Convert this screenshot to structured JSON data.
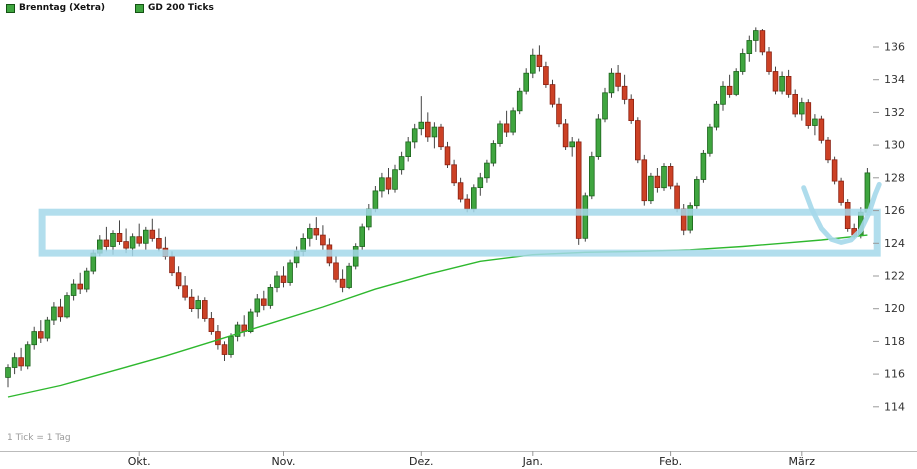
{
  "legend": {
    "items": [
      {
        "label": "Brenntag (Xetra)",
        "color": "#3fa53f"
      },
      {
        "label": "GD 200 Ticks",
        "color": "#3fa53f"
      }
    ]
  },
  "footer_note": "1 Tick = 1 Tag",
  "chart_data": {
    "type": "candlestick",
    "title": "Brenntag (Xetra)",
    "legend_position": "top-left",
    "grid": false,
    "ylim": [
      114,
      137.2
    ],
    "y_axis": {
      "side": "right",
      "ticks": [
        136,
        134,
        132,
        130,
        128,
        126,
        124,
        122,
        120,
        118,
        116,
        114
      ]
    },
    "x_axis": {
      "tick_labels": [
        "Okt.",
        "Nov.",
        "Dez.",
        "Jan.",
        "Feb.",
        "März"
      ],
      "tick_days": [
        20,
        42,
        63,
        80,
        101,
        121
      ],
      "note": "1 Tick = 1 Tag"
    },
    "candles_ohlc": [
      [
        115.8,
        116.6,
        115.2,
        116.4
      ],
      [
        116.4,
        117.3,
        116.0,
        117.0
      ],
      [
        117.0,
        117.6,
        116.2,
        116.5
      ],
      [
        116.5,
        118.0,
        116.3,
        117.8
      ],
      [
        117.8,
        118.9,
        117.5,
        118.6
      ],
      [
        118.6,
        119.3,
        117.9,
        118.2
      ],
      [
        118.2,
        119.5,
        118.0,
        119.3
      ],
      [
        119.3,
        120.4,
        119.0,
        120.1
      ],
      [
        120.1,
        120.6,
        119.2,
        119.5
      ],
      [
        119.5,
        121.0,
        119.4,
        120.8
      ],
      [
        120.8,
        121.8,
        120.5,
        121.5
      ],
      [
        121.5,
        122.2,
        120.9,
        121.2
      ],
      [
        121.2,
        122.5,
        121.0,
        122.3
      ],
      [
        122.3,
        123.6,
        122.1,
        123.4
      ],
      [
        123.4,
        124.5,
        123.2,
        124.2
      ],
      [
        124.2,
        125.0,
        123.5,
        123.8
      ],
      [
        123.8,
        124.8,
        123.3,
        124.6
      ],
      [
        124.6,
        125.4,
        123.9,
        124.1
      ],
      [
        124.1,
        124.9,
        123.4,
        123.7
      ],
      [
        123.7,
        124.6,
        123.2,
        124.4
      ],
      [
        124.4,
        125.2,
        123.8,
        124.0
      ],
      [
        124.0,
        125.0,
        123.6,
        124.8
      ],
      [
        124.8,
        125.5,
        124.1,
        124.3
      ],
      [
        124.3,
        124.9,
        123.5,
        123.7
      ],
      [
        123.7,
        124.4,
        123.0,
        123.2
      ],
      [
        123.2,
        123.5,
        122.0,
        122.2
      ],
      [
        122.2,
        122.6,
        121.2,
        121.4
      ],
      [
        121.4,
        122.0,
        120.5,
        120.7
      ],
      [
        120.7,
        121.2,
        119.8,
        120.0
      ],
      [
        120.0,
        120.8,
        119.4,
        120.5
      ],
      [
        120.5,
        120.7,
        119.2,
        119.4
      ],
      [
        119.4,
        119.8,
        118.4,
        118.6
      ],
      [
        118.6,
        119.0,
        117.5,
        117.8
      ],
      [
        117.8,
        118.0,
        116.8,
        117.2
      ],
      [
        117.2,
        118.5,
        117.0,
        118.3
      ],
      [
        118.3,
        119.2,
        118.0,
        119.0
      ],
      [
        119.0,
        119.6,
        118.3,
        118.6
      ],
      [
        118.6,
        120.0,
        118.5,
        119.8
      ],
      [
        119.8,
        120.9,
        119.5,
        120.6
      ],
      [
        120.6,
        121.1,
        119.9,
        120.2
      ],
      [
        120.2,
        121.5,
        120.0,
        121.3
      ],
      [
        121.3,
        122.3,
        121.0,
        122.0
      ],
      [
        122.0,
        122.6,
        121.3,
        121.6
      ],
      [
        121.6,
        123.0,
        121.4,
        122.8
      ],
      [
        122.8,
        123.8,
        122.5,
        123.5
      ],
      [
        123.5,
        124.6,
        123.2,
        124.3
      ],
      [
        124.3,
        125.2,
        123.8,
        124.9
      ],
      [
        124.9,
        125.6,
        124.2,
        124.5
      ],
      [
        124.5,
        125.1,
        123.6,
        123.9
      ],
      [
        123.9,
        124.3,
        122.6,
        122.8
      ],
      [
        122.8,
        123.2,
        121.6,
        121.8
      ],
      [
        121.8,
        122.4,
        121.0,
        121.3
      ],
      [
        121.3,
        122.8,
        121.2,
        122.6
      ],
      [
        122.6,
        124.0,
        122.4,
        123.8
      ],
      [
        123.8,
        125.2,
        123.6,
        125.0
      ],
      [
        125.0,
        126.4,
        124.8,
        126.1
      ],
      [
        126.1,
        127.5,
        125.9,
        127.2
      ],
      [
        127.2,
        128.3,
        126.8,
        128.0
      ],
      [
        128.0,
        128.6,
        127.0,
        127.3
      ],
      [
        127.3,
        128.8,
        127.1,
        128.5
      ],
      [
        128.5,
        129.6,
        128.2,
        129.3
      ],
      [
        129.3,
        130.5,
        129.0,
        130.2
      ],
      [
        130.2,
        131.3,
        129.8,
        131.0
      ],
      [
        131.0,
        133.0,
        130.6,
        131.4
      ],
      [
        131.4,
        132.0,
        130.2,
        130.5
      ],
      [
        130.5,
        131.4,
        129.8,
        131.1
      ],
      [
        131.1,
        131.3,
        129.7,
        129.9
      ],
      [
        129.9,
        130.2,
        128.6,
        128.8
      ],
      [
        128.8,
        129.1,
        127.5,
        127.7
      ],
      [
        127.7,
        128.0,
        126.5,
        126.7
      ],
      [
        126.7,
        127.0,
        125.9,
        126.1
      ],
      [
        126.1,
        127.6,
        125.9,
        127.4
      ],
      [
        127.4,
        128.3,
        126.9,
        128.0
      ],
      [
        128.0,
        129.1,
        127.7,
        128.9
      ],
      [
        128.9,
        130.3,
        128.7,
        130.1
      ],
      [
        130.1,
        131.5,
        129.9,
        131.3
      ],
      [
        131.3,
        132.1,
        130.5,
        130.8
      ],
      [
        130.8,
        132.3,
        130.6,
        132.1
      ],
      [
        132.1,
        133.5,
        131.9,
        133.3
      ],
      [
        133.3,
        134.7,
        133.1,
        134.4
      ],
      [
        134.4,
        135.9,
        134.1,
        135.5
      ],
      [
        135.5,
        136.1,
        134.5,
        134.8
      ],
      [
        134.8,
        135.1,
        133.5,
        133.7
      ],
      [
        133.7,
        134.0,
        132.3,
        132.5
      ],
      [
        132.5,
        132.9,
        131.1,
        131.3
      ],
      [
        131.3,
        131.6,
        129.7,
        129.9
      ],
      [
        129.9,
        130.5,
        129.3,
        130.2
      ],
      [
        130.2,
        130.4,
        123.9,
        124.3
      ],
      [
        124.3,
        127.1,
        124.1,
        126.9
      ],
      [
        126.9,
        129.6,
        126.7,
        129.3
      ],
      [
        129.3,
        131.9,
        129.1,
        131.6
      ],
      [
        131.6,
        133.5,
        131.4,
        133.2
      ],
      [
        133.2,
        134.7,
        132.9,
        134.4
      ],
      [
        134.4,
        134.9,
        133.3,
        133.6
      ],
      [
        133.6,
        134.3,
        132.5,
        132.8
      ],
      [
        132.8,
        133.1,
        131.3,
        131.5
      ],
      [
        131.5,
        131.7,
        128.9,
        129.1
      ],
      [
        129.1,
        129.4,
        126.3,
        126.6
      ],
      [
        126.6,
        128.3,
        126.4,
        128.1
      ],
      [
        128.1,
        128.6,
        127.1,
        127.4
      ],
      [
        127.4,
        128.9,
        127.2,
        128.7
      ],
      [
        128.7,
        128.9,
        127.3,
        127.5
      ],
      [
        127.5,
        127.7,
        125.9,
        126.1
      ],
      [
        126.1,
        126.4,
        124.5,
        124.8
      ],
      [
        124.8,
        126.5,
        124.6,
        126.3
      ],
      [
        126.3,
        128.1,
        126.1,
        127.9
      ],
      [
        127.9,
        129.7,
        127.7,
        129.5
      ],
      [
        129.5,
        131.3,
        129.3,
        131.1
      ],
      [
        131.1,
        132.7,
        130.9,
        132.5
      ],
      [
        132.5,
        133.9,
        132.1,
        133.6
      ],
      [
        133.6,
        134.3,
        132.9,
        133.1
      ],
      [
        133.1,
        134.7,
        133.0,
        134.5
      ],
      [
        134.5,
        135.9,
        134.3,
        135.6
      ],
      [
        135.6,
        136.7,
        135.1,
        136.4
      ],
      [
        136.4,
        137.2,
        135.7,
        137.0
      ],
      [
        137.0,
        137.1,
        135.5,
        135.7
      ],
      [
        135.7,
        136.0,
        134.3,
        134.5
      ],
      [
        134.5,
        134.8,
        133.1,
        133.3
      ],
      [
        133.3,
        134.5,
        133.1,
        134.2
      ],
      [
        134.2,
        134.6,
        132.9,
        133.1
      ],
      [
        133.1,
        133.4,
        131.7,
        131.9
      ],
      [
        131.9,
        132.9,
        131.5,
        132.6
      ],
      [
        132.6,
        132.8,
        131.0,
        131.2
      ],
      [
        131.2,
        131.9,
        130.6,
        131.6
      ],
      [
        131.6,
        131.8,
        130.1,
        130.3
      ],
      [
        130.3,
        130.5,
        128.9,
        129.1
      ],
      [
        129.1,
        129.3,
        127.6,
        127.8
      ],
      [
        127.8,
        128.0,
        126.3,
        126.5
      ],
      [
        126.5,
        126.7,
        124.7,
        124.9
      ],
      [
        124.9,
        125.2,
        124.3,
        124.5
      ],
      [
        124.5,
        126.2,
        124.3,
        125.9
      ],
      [
        125.9,
        128.6,
        125.7,
        128.3
      ]
    ],
    "moving_average": {
      "name": "GD 200 Ticks",
      "points_day_price": [
        [
          0,
          114.6
        ],
        [
          8,
          115.3
        ],
        [
          16,
          116.2
        ],
        [
          24,
          117.1
        ],
        [
          32,
          118.1
        ],
        [
          40,
          119.1
        ],
        [
          48,
          120.1
        ],
        [
          56,
          121.2
        ],
        [
          64,
          122.1
        ],
        [
          72,
          122.9
        ],
        [
          80,
          123.3
        ],
        [
          88,
          123.45
        ],
        [
          96,
          123.5
        ],
        [
          104,
          123.6
        ],
        [
          112,
          123.8
        ],
        [
          118,
          124.0
        ],
        [
          124,
          124.2
        ],
        [
          131,
          124.5
        ]
      ]
    },
    "support_zone": {
      "price_top": 125.9,
      "price_bottom": 123.4,
      "start_day": 5.2,
      "end_day": 132.5
    },
    "annotation_u_curve": {
      "points_day_price": [
        [
          121.3,
          127.4
        ],
        [
          122.5,
          126.1
        ],
        [
          124,
          124.9
        ],
        [
          125.5,
          124.25
        ],
        [
          127,
          124.05
        ],
        [
          128.5,
          124.2
        ],
        [
          130,
          124.8
        ],
        [
          131.2,
          125.8
        ],
        [
          132.2,
          127.0
        ],
        [
          132.8,
          127.6
        ]
      ]
    },
    "colors": {
      "up": "#3fa53f",
      "up_border": "#1c641c",
      "down": "#cc4125",
      "down_border": "#8a2011",
      "wick": "#444444",
      "ma_line": "#2eb82e",
      "zone": "#a5d8ea",
      "axis_text": "#333333"
    }
  }
}
